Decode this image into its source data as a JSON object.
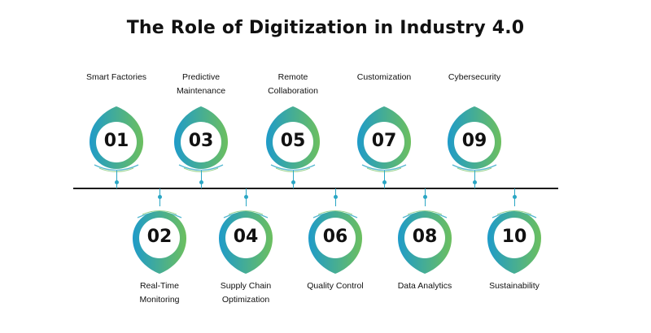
{
  "title": "The Role of Digitization in Industry 4.0",
  "colors": {
    "gradient_start": "#1f9bc9",
    "gradient_end": "#6cbf5f",
    "line": "#1a1a1a",
    "accent": "#2aa6c4"
  },
  "top_items": [
    {
      "number": "01",
      "label": "Smart Factories"
    },
    {
      "number": "03",
      "label": "Predictive\nMaintenance"
    },
    {
      "number": "05",
      "label": "Remote\nCollaboration"
    },
    {
      "number": "07",
      "label": "Customization"
    },
    {
      "number": "09",
      "label": "Cybersecurity"
    }
  ],
  "bottom_items": [
    {
      "number": "02",
      "label": "Real-Time\nMonitoring"
    },
    {
      "number": "04",
      "label": "Supply Chain\nOptimization"
    },
    {
      "number": "06",
      "label": "Quality Control"
    },
    {
      "number": "08",
      "label": "Data Analytics"
    },
    {
      "number": "10",
      "label": "Sustainability"
    }
  ]
}
